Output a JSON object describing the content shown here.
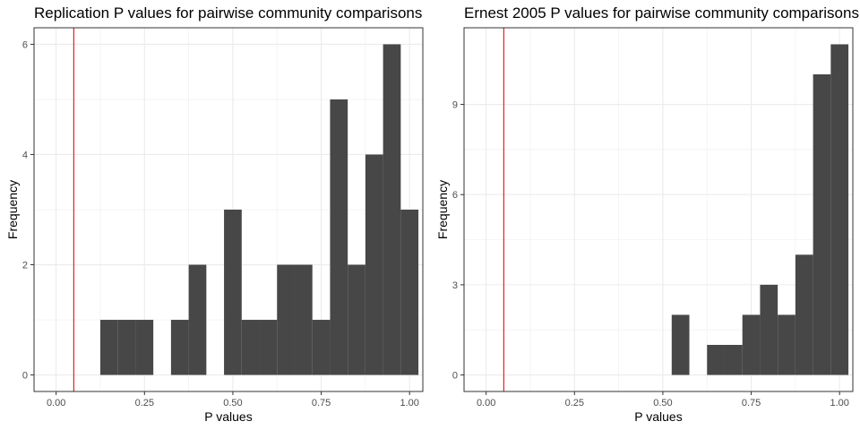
{
  "chart_data": [
    {
      "type": "bar",
      "title": "Replication P values for pairwise community comparisons",
      "xlabel": "P values",
      "ylabel": "Frequency",
      "xlim": [
        -0.0625,
        1.0375
      ],
      "ylim": [
        -0.3,
        6.3
      ],
      "x_ticks": [
        0,
        0.25,
        0.5,
        0.75,
        1
      ],
      "x_tick_labels": [
        "0.00",
        "0.25",
        "0.50",
        "0.75",
        "1.00"
      ],
      "y_ticks": [
        0,
        2,
        4,
        6
      ],
      "y_tick_labels": [
        "0",
        "2",
        "4",
        "6"
      ],
      "bin_width": 0.05,
      "bin_centers": [
        0.15,
        0.2,
        0.25,
        0.3,
        0.35,
        0.4,
        0.45,
        0.5,
        0.55,
        0.6,
        0.65,
        0.7,
        0.75,
        0.8,
        0.85,
        0.9,
        0.95,
        1.0
      ],
      "values": [
        1,
        1,
        1,
        0,
        1,
        2,
        0,
        3,
        1,
        1,
        2,
        2,
        1,
        5,
        2,
        4,
        6,
        3
      ],
      "reference_line_x": 0.05,
      "bar_color": "#474747",
      "line_color": "#e8202a",
      "grid": true,
      "legend": "none"
    },
    {
      "type": "bar",
      "title": "Ernest 2005 P values for pairwise community comparisons",
      "xlabel": "P values",
      "ylabel": "Frequency",
      "xlim": [
        -0.0625,
        1.0375
      ],
      "ylim": [
        -0.55,
        11.55
      ],
      "x_ticks": [
        0,
        0.25,
        0.5,
        0.75,
        1
      ],
      "x_tick_labels": [
        "0.00",
        "0.25",
        "0.50",
        "0.75",
        "1.00"
      ],
      "y_ticks": [
        0,
        3,
        6,
        9
      ],
      "y_tick_labels": [
        "0",
        "3",
        "6",
        "9"
      ],
      "bin_width": 0.05,
      "bin_centers": [
        0.55,
        0.6,
        0.65,
        0.7,
        0.75,
        0.8,
        0.85,
        0.9,
        0.95,
        1.0
      ],
      "values": [
        2,
        0,
        1,
        1,
        2,
        3,
        2,
        4,
        10,
        11
      ],
      "reference_line_x": 0.05,
      "bar_color": "#474747",
      "line_color": "#e8202a",
      "grid": true,
      "legend": "none"
    }
  ]
}
